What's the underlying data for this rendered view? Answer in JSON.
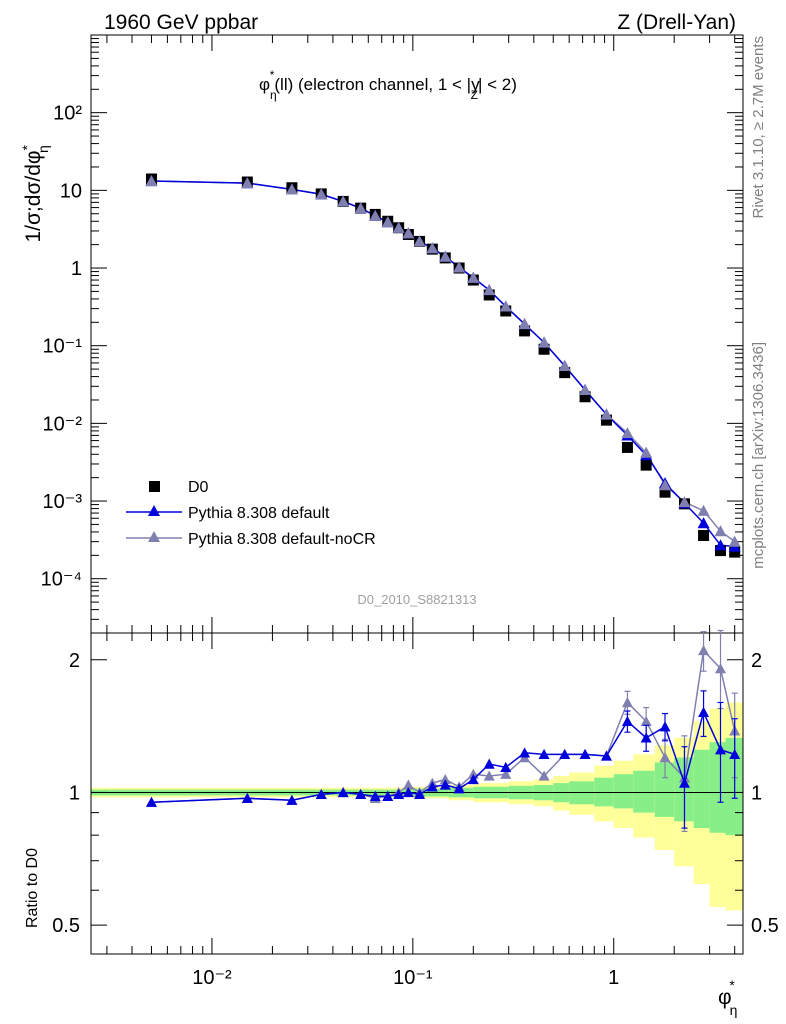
{
  "header": {
    "left": "1960 GeV ppbar",
    "right": "Z (Drell-Yan)"
  },
  "side_labels": {
    "rivet": "Rivet 3.1.10, ≥ 2.7M events",
    "mcplots": "mcplots.cern.ch [arXiv:1306.3436]"
  },
  "colors": {
    "data": "#000000",
    "default": "#0000dd",
    "noCR": "#8080b0",
    "band_outer": "#ffff99",
    "band_inner": "#88ee88"
  },
  "chart_data": [
    {
      "type": "scatter",
      "title": "φ*η(ll) (electron channel, 1 < |yZ| < 2)",
      "watermark": "D0_2010_S8821313",
      "xlabel": "φ*η",
      "ylabel": "1/σ;dσ/dφ*η",
      "xscale": "log",
      "yscale": "log",
      "xlim": [
        0.0025,
        4.4
      ],
      "ylim": [
        2e-05,
        1000
      ],
      "ytick_labels": [
        "10⁻⁴",
        "10⁻³",
        "10⁻²",
        "10⁻¹",
        "1",
        "10",
        "10²"
      ],
      "legend_position": "bottom-left",
      "x": [
        0.005,
        0.015,
        0.025,
        0.035,
        0.045,
        0.055,
        0.065,
        0.075,
        0.085,
        0.095,
        0.108,
        0.125,
        0.145,
        0.17,
        0.2,
        0.24,
        0.29,
        0.36,
        0.45,
        0.57,
        0.72,
        0.92,
        1.17,
        1.45,
        1.8,
        2.25,
        2.8,
        3.4,
        4.0
      ],
      "series": [
        {
          "name": "D0",
          "marker": "square",
          "values": [
            14.0,
            12.8,
            10.8,
            9.0,
            7.2,
            5.9,
            4.9,
            4.0,
            3.3,
            2.7,
            2.2,
            1.75,
            1.35,
            1.0,
            0.7,
            0.45,
            0.28,
            0.155,
            0.09,
            0.045,
            0.022,
            0.011,
            0.0049,
            0.0029,
            0.0013,
            0.00092,
            0.00036,
            0.00023,
            0.00022
          ]
        },
        {
          "name": "Pythia 8.308 default",
          "marker": "triangle",
          "values": [
            13.2,
            12.4,
            10.3,
            8.9,
            7.2,
            5.9,
            4.7,
            3.9,
            3.3,
            2.8,
            2.2,
            1.8,
            1.4,
            1.02,
            0.75,
            0.52,
            0.32,
            0.19,
            0.11,
            0.055,
            0.027,
            0.013,
            0.007,
            0.0039,
            0.0017,
            0.00094,
            0.00052,
            0.00027,
            0.00026
          ]
        },
        {
          "name": "Pythia 8.308 default-noCR",
          "marker": "triangle",
          "values": [
            13.2,
            12.4,
            10.3,
            8.9,
            7.2,
            5.9,
            4.7,
            3.9,
            3.3,
            2.8,
            2.2,
            1.8,
            1.4,
            1.02,
            0.75,
            0.52,
            0.32,
            0.19,
            0.11,
            0.055,
            0.027,
            0.013,
            0.0075,
            0.0042,
            0.0016,
            0.00097,
            0.00075,
            0.00041,
            0.0003
          ]
        }
      ]
    },
    {
      "type": "scatter",
      "xlabel": "φ*η",
      "ylabel": "Ratio to D0",
      "xscale": "log",
      "yscale": "log",
      "xlim": [
        0.0025,
        4.4
      ],
      "ylim": [
        0.43,
        2.3
      ],
      "ytick_labels": [
        "0.5",
        "1",
        "2"
      ],
      "xtick_labels": [
        "10⁻²",
        "10⁻¹",
        "1"
      ],
      "x": [
        0.005,
        0.015,
        0.025,
        0.035,
        0.045,
        0.055,
        0.065,
        0.075,
        0.085,
        0.095,
        0.108,
        0.125,
        0.145,
        0.17,
        0.2,
        0.24,
        0.29,
        0.36,
        0.45,
        0.57,
        0.72,
        0.92,
        1.17,
        1.45,
        1.8,
        2.25,
        2.8,
        3.4,
        4.0
      ],
      "series": [
        {
          "name": "Pythia 8.308 default",
          "values": [
            0.95,
            0.97,
            0.96,
            0.99,
            1.0,
            0.99,
            0.98,
            0.98,
            0.99,
            1.0,
            0.99,
            1.03,
            1.04,
            1.02,
            1.07,
            1.16,
            1.14,
            1.23,
            1.22,
            1.22,
            1.22,
            1.21,
            1.45,
            1.33,
            1.41,
            1.05,
            1.52,
            1.25,
            1.22
          ]
        },
        {
          "name": "Pythia 8.308 default-noCR",
          "values": [
            0.95,
            0.97,
            0.96,
            0.99,
            1.0,
            0.99,
            0.97,
            0.98,
            1.0,
            1.04,
            1.0,
            1.05,
            1.07,
            1.03,
            1.1,
            1.09,
            1.1,
            1.2,
            1.09,
            1.22,
            1.22,
            1.21,
            1.6,
            1.45,
            1.2,
            1.08,
            2.1,
            1.91,
            1.38
          ]
        }
      ],
      "error_bars": [
        {
          "index": 22,
          "up": 0.08,
          "down": 0.08
        },
        {
          "index": 23,
          "up": 0.09,
          "down": 0.09
        },
        {
          "index": 24,
          "up": 0.1,
          "down": 0.1
        },
        {
          "index": 25,
          "up": 0.22,
          "down": 0.22
        },
        {
          "index": 26,
          "up": 0.18,
          "down": 0.18
        },
        {
          "index": 27,
          "up": 0.35,
          "down": 0.3
        },
        {
          "index": 28,
          "up": 0.25,
          "down": 0.25
        }
      ],
      "band_edges": [
        0.0025,
        0.1,
        0.15,
        0.2,
        0.3,
        0.4,
        0.5,
        0.6,
        0.8,
        1.0,
        1.25,
        1.6,
        2.0,
        2.5,
        3.0,
        3.6,
        4.4
      ],
      "band_inner": [
        [
          0.985,
          1.015
        ],
        [
          0.98,
          1.02
        ],
        [
          0.975,
          1.025
        ],
        [
          0.97,
          1.03
        ],
        [
          0.965,
          1.035
        ],
        [
          0.96,
          1.04
        ],
        [
          0.95,
          1.05
        ],
        [
          0.94,
          1.06
        ],
        [
          0.93,
          1.08
        ],
        [
          0.92,
          1.1
        ],
        [
          0.9,
          1.12
        ],
        [
          0.88,
          1.17
        ],
        [
          0.86,
          1.2
        ],
        [
          0.83,
          1.25
        ],
        [
          0.81,
          1.3
        ],
        [
          0.8,
          1.33
        ]
      ],
      "band_outer": [
        [
          0.975,
          1.025
        ],
        [
          0.97,
          1.03
        ],
        [
          0.96,
          1.04
        ],
        [
          0.95,
          1.05
        ],
        [
          0.94,
          1.06
        ],
        [
          0.93,
          1.07
        ],
        [
          0.91,
          1.09
        ],
        [
          0.89,
          1.11
        ],
        [
          0.86,
          1.15
        ],
        [
          0.83,
          1.18
        ],
        [
          0.79,
          1.22
        ],
        [
          0.74,
          1.28
        ],
        [
          0.68,
          1.33
        ],
        [
          0.62,
          1.45
        ],
        [
          0.55,
          1.55
        ],
        [
          0.54,
          1.6
        ]
      ]
    }
  ]
}
